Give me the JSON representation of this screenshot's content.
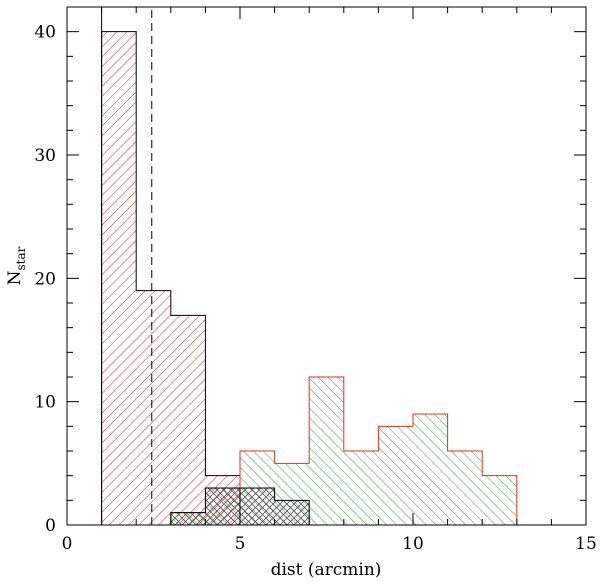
{
  "chart_data": {
    "type": "histogram",
    "xlabel": "dist (arcmin)",
    "ylabel_main": "N",
    "ylabel_sub": "star",
    "xlim": [
      0,
      15
    ],
    "ylim": [
      0,
      42
    ],
    "x_ticks": [
      0,
      5,
      10,
      15
    ],
    "x_tick_labels": [
      "0",
      "5",
      "10",
      "15"
    ],
    "y_ticks": [
      0,
      10,
      20,
      30,
      40
    ],
    "y_tick_labels": [
      "0",
      "10",
      "20",
      "30",
      "40"
    ],
    "x_minor_step": 1,
    "y_minor_step": 2,
    "reference_lines": [
      {
        "x": 1.0,
        "style": "solid"
      },
      {
        "x": 2.45,
        "style": "dashed"
      }
    ],
    "series": [
      {
        "edges": [
          1,
          2,
          3,
          4,
          5,
          6,
          7,
          8,
          9,
          10,
          11,
          12,
          13,
          14,
          15
        ],
        "counts": [
          40,
          19,
          17,
          4,
          0,
          0,
          0,
          0,
          0,
          0,
          0,
          0,
          0,
          0
        ],
        "baseline_from": 0,
        "outline_color": "#000000",
        "hatch_color": "#cc2222",
        "hatch": "forward"
      },
      {
        "edges": [
          3,
          4,
          5,
          6,
          7,
          8,
          9,
          10,
          11,
          12,
          13,
          14,
          15
        ],
        "counts": [
          1,
          3,
          6,
          5,
          12,
          6,
          8,
          9,
          6,
          4,
          0,
          0
        ],
        "baseline_from": 0,
        "outline_color": "#e03020",
        "hatch_color": "#22aa22",
        "hatch": "backward"
      },
      {
        "edges": [
          3,
          4,
          5,
          6,
          7
        ],
        "counts": [
          1,
          3,
          3,
          2
        ],
        "outline_color": "#000000",
        "hatch_color": "#555555",
        "hatch": "cross"
      }
    ],
    "colors": {
      "red": "#cc2222",
      "green": "#22aa22",
      "black": "#000000"
    }
  }
}
